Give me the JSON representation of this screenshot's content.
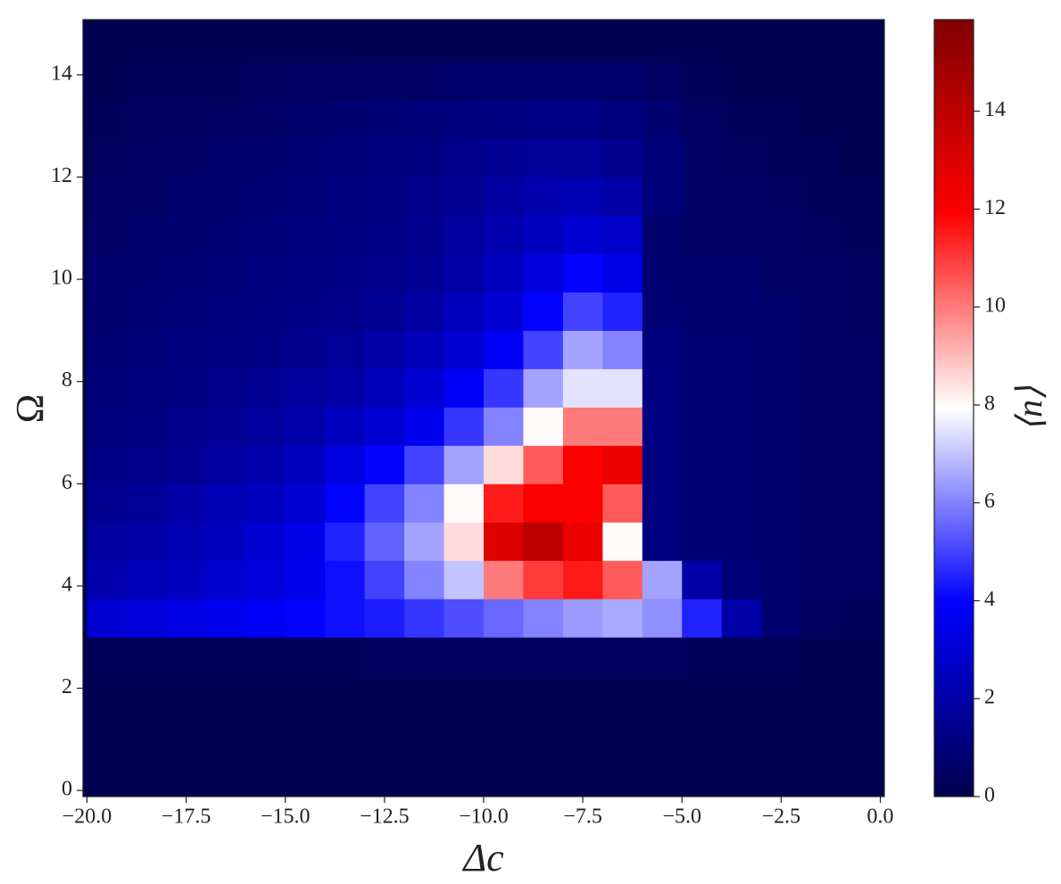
{
  "chart_data": {
    "type": "heatmap",
    "x_label": "Δc",
    "y_label": "Ω",
    "colormap": "seismic",
    "x_edges": [
      -20,
      -19,
      -18,
      -17,
      -16,
      -15,
      -14,
      -13,
      -12,
      -11,
      -10,
      -9,
      -8,
      -7,
      -6,
      -5,
      -4,
      -3,
      -2,
      -1,
      0
    ],
    "y_edges": [
      0,
      0.75,
      1.5,
      2.25,
      3,
      3.75,
      4.5,
      5.25,
      6,
      6.75,
      7.5,
      8.25,
      9,
      9.75,
      10.5,
      11.25,
      12,
      12.75,
      13.5,
      14.25,
      15
    ],
    "values": [
      [
        0.2,
        0.2,
        0.2,
        0.2,
        0.2,
        0.2,
        0.2,
        0.2,
        0.2,
        0.2,
        0.2,
        0.2,
        0.2,
        0.2,
        0.2,
        0.2,
        0.2,
        0.2,
        0.2,
        0.2
      ],
      [
        0.2,
        0.2,
        0.2,
        0.2,
        0.2,
        0.2,
        0.2,
        0.2,
        0.2,
        0.2,
        0.2,
        0.2,
        0.2,
        0.2,
        0.2,
        0.2,
        0.2,
        0.2,
        0.2,
        0.2
      ],
      [
        0.2,
        0.2,
        0.2,
        0.2,
        0.2,
        0.2,
        0.2,
        0.2,
        0.2,
        0.2,
        0.2,
        0.2,
        0.2,
        0.2,
        0.2,
        0.2,
        0.2,
        0.2,
        0.2,
        0.2
      ],
      [
        0.3,
        0.3,
        0.3,
        0.3,
        0.3,
        0.3,
        0.3,
        0.4,
        0.4,
        0.4,
        0.4,
        0.4,
        0.4,
        0.4,
        0.4,
        0.3,
        0.3,
        0.3,
        0.2,
        0.2
      ],
      [
        3.0,
        3.2,
        3.4,
        3.6,
        3.8,
        4.0,
        4.2,
        4.4,
        4.8,
        5.2,
        5.6,
        6.0,
        6.4,
        6.6,
        6.2,
        4.5,
        2.0,
        0.8,
        0.4,
        0.3
      ],
      [
        2.2,
        2.4,
        2.6,
        2.9,
        3.2,
        3.6,
        4.2,
        5.0,
        6.0,
        7.0,
        10.0,
        11.0,
        11.5,
        10.5,
        6.5,
        2.0,
        1.0,
        0.8,
        0.6,
        0.5
      ],
      [
        1.8,
        2.0,
        2.3,
        2.6,
        3.0,
        3.5,
        4.5,
        5.5,
        6.5,
        8.5,
        13.0,
        14.0,
        12.5,
        8.0,
        1.2,
        0.9,
        0.9,
        0.8,
        0.6,
        0.5
      ],
      [
        1.5,
        1.7,
        2.0,
        2.3,
        2.6,
        3.0,
        4.0,
        5.0,
        6.0,
        8.0,
        11.5,
        12.0,
        12.0,
        10.5,
        1.2,
        0.9,
        0.9,
        0.8,
        0.6,
        0.5
      ],
      [
        1.3,
        1.4,
        1.6,
        1.9,
        2.2,
        2.6,
        3.3,
        4.0,
        5.0,
        6.5,
        8.5,
        10.5,
        12.0,
        12.5,
        1.2,
        0.9,
        0.9,
        0.8,
        0.6,
        0.5
      ],
      [
        1.1,
        1.2,
        1.4,
        1.6,
        1.8,
        2.1,
        2.6,
        3.0,
        3.6,
        4.8,
        6.0,
        8.0,
        10.0,
        10.0,
        1.2,
        0.9,
        0.9,
        0.8,
        0.6,
        0.5
      ],
      [
        1.0,
        1.1,
        1.2,
        1.4,
        1.6,
        1.8,
        2.0,
        2.4,
        3.0,
        3.8,
        4.8,
        6.5,
        7.5,
        7.5,
        1.2,
        0.9,
        0.9,
        0.8,
        0.6,
        0.5
      ],
      [
        0.9,
        1.0,
        1.1,
        1.2,
        1.3,
        1.5,
        1.7,
        2.0,
        2.4,
        3.0,
        3.8,
        5.0,
        6.5,
        6.0,
        1.1,
        0.9,
        0.9,
        0.8,
        0.6,
        0.5
      ],
      [
        0.8,
        0.9,
        1.0,
        1.1,
        1.2,
        1.3,
        1.4,
        1.6,
        1.9,
        2.5,
        3.0,
        4.0,
        5.0,
        4.5,
        0.9,
        0.8,
        0.8,
        0.7,
        0.5,
        0.4
      ],
      [
        0.7,
        0.8,
        0.9,
        1.0,
        1.1,
        1.2,
        1.3,
        1.4,
        1.6,
        2.0,
        2.6,
        3.2,
        4.0,
        3.5,
        0.8,
        0.7,
        0.7,
        0.6,
        0.5,
        0.4
      ],
      [
        0.6,
        0.7,
        0.8,
        0.9,
        1.0,
        1.1,
        1.2,
        1.3,
        1.5,
        1.8,
        2.2,
        2.6,
        3.0,
        2.8,
        0.7,
        0.6,
        0.6,
        0.5,
        0.4,
        0.3
      ],
      [
        0.5,
        0.6,
        0.7,
        0.8,
        0.9,
        1.0,
        1.1,
        1.2,
        1.4,
        1.6,
        1.9,
        2.2,
        2.3,
        2.0,
        1.0,
        0.6,
        0.5,
        0.4,
        0.3,
        0.3
      ],
      [
        0.4,
        0.5,
        0.6,
        0.7,
        0.8,
        0.9,
        1.0,
        1.1,
        1.2,
        1.4,
        1.6,
        1.7,
        1.7,
        1.5,
        1.0,
        0.6,
        0.4,
        0.3,
        0.3,
        0.2
      ],
      [
        0.3,
        0.4,
        0.4,
        0.5,
        0.6,
        0.7,
        0.8,
        0.9,
        1.0,
        1.1,
        1.2,
        1.3,
        1.3,
        1.1,
        0.8,
        0.5,
        0.3,
        0.3,
        0.2,
        0.2
      ],
      [
        0.2,
        0.3,
        0.3,
        0.3,
        0.4,
        0.5,
        0.5,
        0.6,
        0.6,
        0.7,
        0.8,
        0.8,
        0.8,
        0.7,
        0.5,
        0.3,
        0.2,
        0.2,
        0.2,
        0.2
      ],
      [
        0.2,
        0.2,
        0.2,
        0.2,
        0.2,
        0.2,
        0.2,
        0.2,
        0.2,
        0.2,
        0.2,
        0.2,
        0.2,
        0.2,
        0.2,
        0.2,
        0.2,
        0.2,
        0.2,
        0.2
      ]
    ],
    "xlim": [
      -20.1,
      0.1
    ],
    "ylim": [
      -0.12,
      15.08
    ],
    "xticks": [
      {
        "value": -20,
        "label": "−20.0"
      },
      {
        "value": -17.5,
        "label": "−17.5"
      },
      {
        "value": -15,
        "label": "−15.0"
      },
      {
        "value": -12.5,
        "label": "−12.5"
      },
      {
        "value": -10,
        "label": "−10.0"
      },
      {
        "value": -7.5,
        "label": "−7.5"
      },
      {
        "value": -5,
        "label": "−5.0"
      },
      {
        "value": -2.5,
        "label": "−2.5"
      },
      {
        "value": 0,
        "label": "0.0"
      }
    ],
    "yticks": [
      0,
      2,
      4,
      6,
      8,
      10,
      12,
      14
    ],
    "colorbar": {
      "label": "⟨n⟩",
      "lim": [
        0,
        15.87
      ],
      "ticks": [
        0,
        2,
        4,
        6,
        8,
        10,
        12,
        14
      ]
    }
  }
}
